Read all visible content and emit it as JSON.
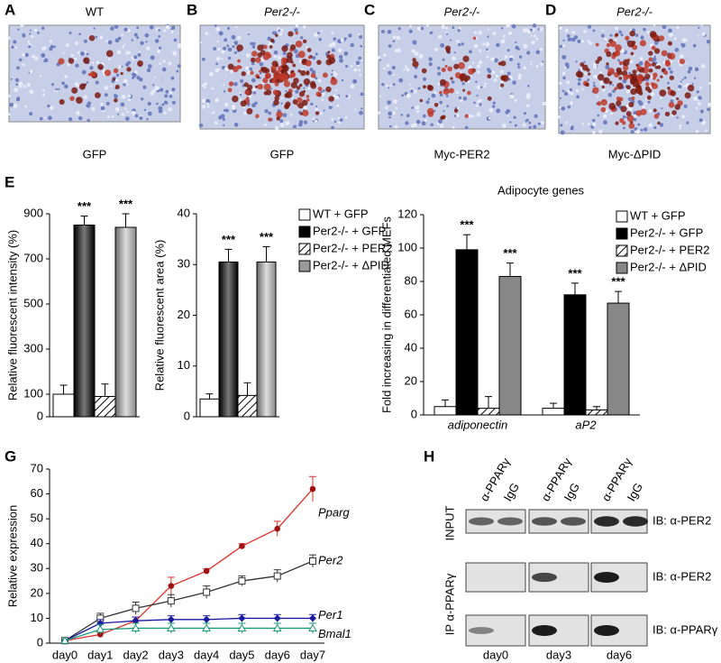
{
  "panels": [
    {
      "letter": "A",
      "title": "WT",
      "caption": "GFP"
    },
    {
      "letter": "B",
      "title": "Per2-/-",
      "caption": "GFP"
    },
    {
      "letter": "C",
      "title": "Per2-/-",
      "caption": "Myc-PER2"
    },
    {
      "letter": "D",
      "title": "Per2-/-",
      "caption": "Myc-ΔPID"
    }
  ],
  "figure_labels": [
    "E",
    "G",
    "H"
  ],
  "chart_data": [
    {
      "type": "bar",
      "ylabel": "Relative fluorescent intensity (%)",
      "ylim": [
        0,
        900
      ],
      "yticks": [
        0,
        100,
        300,
        500,
        700,
        900
      ],
      "categories": [
        null
      ],
      "gradient": true,
      "legend": "right",
      "series": [
        {
          "name": "WT + GFP",
          "color": "#ffffff",
          "values": [
            100
          ],
          "errors": [
            40
          ],
          "annotations": [
            null
          ]
        },
        {
          "name": "Per2-/- + GFP",
          "color": "#000000",
          "values": [
            850
          ],
          "errors": [
            40
          ],
          "annotations": [
            "***"
          ]
        },
        {
          "name": "Per2-/- + PER2",
          "color": "#ffffff",
          "hatch": true,
          "values": [
            90
          ],
          "errors": [
            55
          ],
          "annotations": [
            null
          ]
        },
        {
          "name": "Per2-/- + ΔPID",
          "color": "#999999",
          "values": [
            840
          ],
          "errors": [
            60
          ],
          "annotations": [
            "***"
          ]
        }
      ]
    },
    {
      "type": "bar",
      "ylabel": "Relative fluorescent area (%)",
      "ylim": [
        0,
        40
      ],
      "yticks": [
        0,
        10,
        20,
        30,
        40
      ],
      "categories": [
        null
      ],
      "gradient": true,
      "series": [
        {
          "color": "#ffffff",
          "values": [
            3.5
          ],
          "errors": [
            1
          ],
          "annotations": [
            null
          ]
        },
        {
          "color": "#000000",
          "values": [
            30.5
          ],
          "errors": [
            2.5
          ],
          "annotations": [
            "***"
          ]
        },
        {
          "color": "#ffffff",
          "hatch": true,
          "values": [
            4.2
          ],
          "errors": [
            2.5
          ],
          "annotations": [
            null
          ]
        },
        {
          "color": "#999999",
          "values": [
            30.5
          ],
          "errors": [
            3
          ],
          "annotations": [
            "***"
          ]
        }
      ]
    },
    {
      "type": "bar",
      "title": "Adipocyte genes",
      "ylabel": "Fold increasing in differentiated MEFs",
      "ylim": [
        0,
        120
      ],
      "yticks": [
        0,
        20,
        40,
        60,
        80,
        100,
        120
      ],
      "categories": [
        "adiponectin",
        "aP2"
      ],
      "gradient": false,
      "legend": "right",
      "series": [
        {
          "name": "WT + GFP",
          "color": "#ffffff",
          "values": [
            5,
            4
          ],
          "errors": [
            4,
            3
          ],
          "annotations": [
            null,
            null
          ]
        },
        {
          "name": "Per2-/- + GFP",
          "color": "#000000",
          "values": [
            99,
            72
          ],
          "errors": [
            9,
            7
          ],
          "annotations": [
            "***",
            "***"
          ]
        },
        {
          "name": "Per2-/- + PER2",
          "color": "#ffffff",
          "hatch": true,
          "values": [
            4,
            3
          ],
          "errors": [
            7,
            2
          ],
          "annotations": [
            null,
            null
          ]
        },
        {
          "name": "Per2-/- + ΔPID",
          "color": "#888888",
          "values": [
            83,
            67
          ],
          "errors": [
            8,
            7
          ],
          "annotations": [
            "***",
            "***"
          ]
        }
      ]
    },
    {
      "type": "line",
      "ylabel": "Relative expression",
      "ylim": [
        0,
        70
      ],
      "yticks": [
        0,
        10,
        20,
        30,
        40,
        50,
        60,
        70
      ],
      "categories": [
        "day0",
        "day1",
        "day2",
        "day3",
        "day4",
        "day5",
        "day6",
        "day7"
      ],
      "series": [
        {
          "name": "Pparg",
          "color": "#e0302a",
          "marker": "circle",
          "values": [
            1,
            3.5,
            9,
            23,
            29,
            39,
            46,
            62
          ],
          "errors": [
            0.5,
            1,
            1.5,
            3.5,
            1,
            1,
            3,
            5
          ]
        },
        {
          "name": "Per2",
          "color": "#333333",
          "marker": "square",
          "values": [
            1,
            10,
            14,
            17,
            20.5,
            25,
            27,
            33
          ],
          "errors": [
            0.5,
            2,
            2.5,
            2.5,
            2.5,
            2,
            2.5,
            2.5
          ]
        },
        {
          "name": "Per1",
          "color": "#1a1aa0",
          "marker": "diamond",
          "values": [
            1,
            8,
            9,
            9.5,
            9.5,
            10,
            10,
            10
          ],
          "errors": [
            0.5,
            1.5,
            1.5,
            1.5,
            1.5,
            1.5,
            1.5,
            1.5
          ]
        },
        {
          "name": "Bmal1",
          "color": "#1a9a7a",
          "marker": "triangle",
          "values": [
            1,
            5.5,
            6,
            6,
            6,
            6,
            6,
            6
          ],
          "errors": [
            0.5,
            2,
            2,
            2,
            2,
            2,
            2,
            2
          ]
        }
      ]
    }
  ],
  "blot": {
    "columns": [
      "α-PPARγ",
      "IgG",
      "α-PPARγ",
      "IgG",
      "α-PPARγ",
      "IgG"
    ],
    "rows": [
      "INPUT",
      "IP α-PPARγ"
    ],
    "probes": [
      "IB: α-PER2",
      "IB: α-PER2",
      "IB: α-PPARγ"
    ],
    "days": [
      "day0",
      "day3",
      "day6"
    ]
  }
}
